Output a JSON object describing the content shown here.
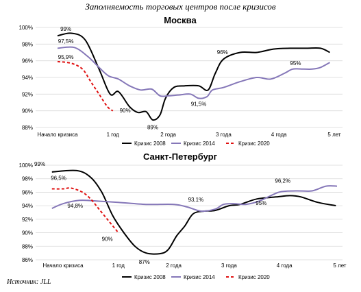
{
  "title": "Заполняемость торговых центров после кризисов",
  "source": "Источник: JLL",
  "chart_data": [
    {
      "type": "line",
      "title": "Москва",
      "x_ticks": [
        "Начало кризиса",
        "1 год",
        "2 года",
        "3 года",
        "4 года",
        "5 лет"
      ],
      "xlim": [
        0,
        5
      ],
      "ylim": [
        88,
        100
      ],
      "y_ticks": [
        "88%",
        "90%",
        "92%",
        "94%",
        "96%",
        "98%",
        "100%"
      ],
      "y_tick_values": [
        88,
        90,
        92,
        94,
        96,
        98,
        100
      ],
      "legend_position": "bottom",
      "series": [
        {
          "name": "Кризис 2008",
          "color": "#000000",
          "style": "solid",
          "points": [
            [
              0,
              99
            ],
            [
              0.25,
              99.3
            ],
            [
              0.5,
              98.5
            ],
            [
              0.75,
              95
            ],
            [
              0.95,
              92
            ],
            [
              1.1,
              92.3
            ],
            [
              1.3,
              90.5
            ],
            [
              1.45,
              89.8
            ],
            [
              1.6,
              89.9
            ],
            [
              1.72,
              88.9
            ],
            [
              1.85,
              89.5
            ],
            [
              1.95,
              91.5
            ],
            [
              2.1,
              92.8
            ],
            [
              2.3,
              93
            ],
            [
              2.55,
              93
            ],
            [
              2.72,
              92.5
            ],
            [
              2.85,
              94.5
            ],
            [
              3.0,
              96.2
            ],
            [
              3.3,
              97
            ],
            [
              3.6,
              97
            ],
            [
              3.9,
              97.4
            ],
            [
              4.2,
              97.5
            ],
            [
              4.5,
              97.5
            ],
            [
              4.75,
              97.5
            ],
            [
              4.92,
              97
            ]
          ]
        },
        {
          "name": "Кризис 2014",
          "color": "#8577b8",
          "style": "solid",
          "points": [
            [
              0,
              97.5
            ],
            [
              0.3,
              97.6
            ],
            [
              0.55,
              96.5
            ],
            [
              0.75,
              95.2
            ],
            [
              0.92,
              94.2
            ],
            [
              1.1,
              93.8
            ],
            [
              1.3,
              93
            ],
            [
              1.5,
              92.5
            ],
            [
              1.7,
              92.6
            ],
            [
              1.85,
              91.8
            ],
            [
              2.0,
              91.8
            ],
            [
              2.2,
              91.9
            ],
            [
              2.4,
              92.0
            ],
            [
              2.55,
              91.5
            ],
            [
              2.7,
              91.7
            ],
            [
              2.8,
              92.5
            ],
            [
              3.0,
              92.8
            ],
            [
              3.3,
              93.5
            ],
            [
              3.6,
              94
            ],
            [
              3.85,
              93.8
            ],
            [
              4.1,
              94.5
            ],
            [
              4.25,
              95
            ],
            [
              4.45,
              95
            ],
            [
              4.6,
              95
            ],
            [
              4.75,
              95.2
            ],
            [
              4.92,
              95.8
            ]
          ]
        },
        {
          "name": "Кризис 2020",
          "color": "#e01010",
          "style": "dashed",
          "points": [
            [
              0,
              95.9
            ],
            [
              0.25,
              95.7
            ],
            [
              0.45,
              95
            ],
            [
              0.6,
              93.5
            ],
            [
              0.75,
              92
            ],
            [
              0.9,
              90.5
            ],
            [
              1.0,
              90
            ]
          ]
        }
      ],
      "annotations": [
        {
          "text": "99%",
          "x": 0.15,
          "y": 99.6
        },
        {
          "text": "97,5%",
          "x": 0.15,
          "y": 98.1
        },
        {
          "text": "95,9%",
          "x": 0.15,
          "y": 96.2
        },
        {
          "text": "90%",
          "x": 1.22,
          "y": 89.8
        },
        {
          "text": "89%",
          "x": 1.72,
          "y": 87.8
        },
        {
          "text": "91,5%",
          "x": 2.55,
          "y": 90.6
        },
        {
          "text": "96%",
          "x": 2.98,
          "y": 96.8
        },
        {
          "text": "95%",
          "x": 4.3,
          "y": 95.5
        }
      ]
    },
    {
      "type": "line",
      "title": "Санкт-Петербург",
      "x_ticks": [
        "Начало кризиса",
        "1 год",
        "2 года",
        "3 года",
        "4 года",
        "5 лет"
      ],
      "xlim": [
        0,
        5
      ],
      "ylim": [
        86,
        100
      ],
      "y_ticks": [
        "86%",
        "88%",
        "90%",
        "92%",
        "94%",
        "96%",
        "98%",
        "100%"
      ],
      "y_tick_values": [
        86,
        88,
        90,
        92,
        94,
        96,
        98,
        100
      ],
      "legend_position": "bottom",
      "series": [
        {
          "name": "Кризис 2008",
          "color": "#000000",
          "style": "solid",
          "points": [
            [
              -0.2,
              99
            ],
            [
              0.25,
              99.2
            ],
            [
              0.5,
              98.2
            ],
            [
              0.7,
              96
            ],
            [
              0.9,
              92.5
            ],
            [
              1.1,
              90
            ],
            [
              1.3,
              88
            ],
            [
              1.5,
              87
            ],
            [
              1.75,
              86.9
            ],
            [
              1.9,
              87.5
            ],
            [
              2.05,
              89.5
            ],
            [
              2.2,
              91
            ],
            [
              2.35,
              92.8
            ],
            [
              2.55,
              93.2
            ],
            [
              2.75,
              93.3
            ],
            [
              3.0,
              94
            ],
            [
              3.2,
              94.2
            ],
            [
              3.5,
              95
            ],
            [
              3.85,
              95.3
            ],
            [
              4.1,
              95.5
            ],
            [
              4.3,
              95.3
            ],
            [
              4.6,
              94.5
            ],
            [
              4.93,
              94
            ]
          ]
        },
        {
          "name": "Кризис 2014",
          "color": "#8577b8",
          "style": "solid",
          "points": [
            [
              -0.2,
              93.6
            ],
            [
              0,
              94.3
            ],
            [
              0.3,
              94.8
            ],
            [
              0.6,
              94.7
            ],
            [
              1.0,
              94.5
            ],
            [
              1.5,
              94.2
            ],
            [
              2.0,
              94.2
            ],
            [
              2.25,
              93.8
            ],
            [
              2.5,
              93.2
            ],
            [
              2.75,
              93.5
            ],
            [
              2.9,
              94.2
            ],
            [
              3.1,
              94.3
            ],
            [
              3.3,
              94.2
            ],
            [
              3.55,
              94.7
            ],
            [
              3.9,
              96
            ],
            [
              4.2,
              96.2
            ],
            [
              4.5,
              96.2
            ],
            [
              4.75,
              96.9
            ],
            [
              4.95,
              96.9
            ]
          ]
        },
        {
          "name": "Кризис 2020",
          "color": "#e01010",
          "style": "dashed",
          "points": [
            [
              -0.2,
              96.5
            ],
            [
              0,
              96.5
            ],
            [
              0.15,
              96.6
            ],
            [
              0.35,
              96
            ],
            [
              0.5,
              95
            ],
            [
              0.65,
              93.5
            ],
            [
              0.8,
              92
            ],
            [
              0.95,
              90.5
            ],
            [
              1.0,
              90
            ]
          ]
        }
      ],
      "annotations": [
        {
          "text": "99%",
          "x": -0.42,
          "y": 99.9
        },
        {
          "text": "96,5%",
          "x": -0.08,
          "y": 97.8
        },
        {
          "text": "94,8%",
          "x": 0.22,
          "y": 93.7
        },
        {
          "text": "90%",
          "x": 0.8,
          "y": 88.8
        },
        {
          "text": "87%",
          "x": 1.47,
          "y": 85.4
        },
        {
          "text": "93,1%",
          "x": 2.4,
          "y": 94.6
        },
        {
          "text": "95%",
          "x": 3.58,
          "y": 94.1
        },
        {
          "text": "96,2%",
          "x": 3.97,
          "y": 97.4
        }
      ]
    }
  ]
}
